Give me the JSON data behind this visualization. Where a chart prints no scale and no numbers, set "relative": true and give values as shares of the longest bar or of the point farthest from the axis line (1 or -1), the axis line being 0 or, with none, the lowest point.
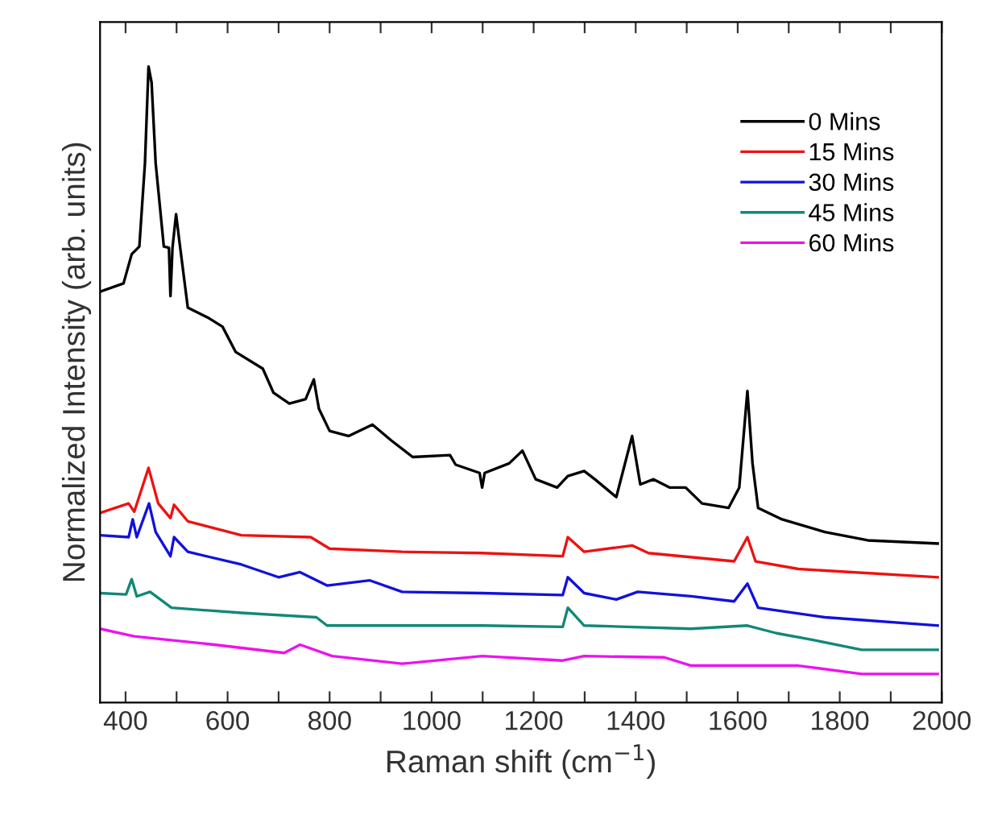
{
  "chart_data": {
    "type": "line",
    "xlabel": "Raman shift (cm$^{−1}$)",
    "ylabel": "Normalized Intensity (arb. units)",
    "relative": true,
    "xlim": [
      350,
      2000
    ],
    "xticks": [
      400,
      {
        "value": 500,
        "label": null
      },
      600,
      {
        "value": 700,
        "label": null
      },
      800,
      {
        "value": 900,
        "label": null
      },
      1000,
      {
        "value": 1100,
        "label": null
      },
      1200,
      {
        "value": 1300,
        "label": null
      },
      1400,
      {
        "value": 1500,
        "label": null
      },
      1600,
      {
        "value": 1700,
        "label": null
      },
      1800,
      {
        "value": 1900,
        "label": null
      },
      2000
    ],
    "legend": "top right",
    "grid": false,
    "marker": "none",
    "line_style": "solid",
    "series": [
      {
        "name": "0 Mins",
        "color": "#000000",
        "x": [
          350,
          396,
          412,
          427,
          438,
          445,
          451,
          459,
          475,
          485,
          488,
          492,
          499,
          506,
          522,
          564,
          590,
          616,
          669,
          690,
          721,
          753,
          769,
          779,
          800,
          837,
          884,
          921,
          963,
          1036,
          1047,
          1094,
          1099,
          1104,
          1152,
          1178,
          1204,
          1246,
          1267,
          1299,
          1320,
          1362,
          1393,
          1409,
          1435,
          1467,
          1498,
          1530,
          1582,
          1603,
          1619,
          1629,
          1640,
          1687,
          1771,
          1855,
          1992
        ],
        "values": [
          0.646,
          0.659,
          0.705,
          0.717,
          0.848,
          1.0,
          0.975,
          0.848,
          0.717,
          0.715,
          0.639,
          0.715,
          0.768,
          0.722,
          0.621,
          0.604,
          0.591,
          0.551,
          0.525,
          0.487,
          0.47,
          0.477,
          0.508,
          0.462,
          0.427,
          0.419,
          0.437,
          0.412,
          0.386,
          0.389,
          0.374,
          0.361,
          0.338,
          0.361,
          0.376,
          0.396,
          0.351,
          0.338,
          0.356,
          0.364,
          0.351,
          0.323,
          0.419,
          0.343,
          0.351,
          0.338,
          0.338,
          0.313,
          0.306,
          0.338,
          0.49,
          0.376,
          0.306,
          0.288,
          0.268,
          0.255,
          0.25
        ]
      },
      {
        "name": "15 Mins",
        "color": "#ee1111",
        "x": [
          350,
          406,
          417,
          445,
          464,
          488,
          495,
          522,
          627,
          763,
          800,
          942,
          1099,
          1257,
          1267,
          1299,
          1393,
          1425,
          1593,
          1619,
          1635,
          1719,
          1992
        ],
        "values": [
          0.298,
          0.313,
          0.3,
          0.369,
          0.313,
          0.29,
          0.311,
          0.285,
          0.263,
          0.26,
          0.242,
          0.237,
          0.235,
          0.23,
          0.26,
          0.237,
          0.247,
          0.235,
          0.222,
          0.26,
          0.222,
          0.21,
          0.197
        ]
      },
      {
        "name": "30 Mins",
        "color": "#1111dd",
        "x": [
          350,
          406,
          414,
          422,
          446,
          459,
          488,
          495,
          522,
          627,
          700,
          742,
          795,
          879,
          942,
          1099,
          1257,
          1267,
          1299,
          1362,
          1404,
          1509,
          1593,
          1619,
          1640,
          1771,
          1992
        ],
        "values": [
          0.263,
          0.26,
          0.288,
          0.26,
          0.313,
          0.268,
          0.23,
          0.26,
          0.237,
          0.217,
          0.197,
          0.205,
          0.184,
          0.192,
          0.174,
          0.172,
          0.169,
          0.197,
          0.172,
          0.162,
          0.174,
          0.167,
          0.159,
          0.187,
          0.149,
          0.134,
          0.121
        ]
      },
      {
        "name": "45 Mins",
        "color": "#118877",
        "x": [
          350,
          401,
          412,
          422,
          448,
          490,
          627,
          774,
          795,
          1099,
          1257,
          1267,
          1299,
          1509,
          1619,
          1676,
          1750,
          1843,
          1992
        ],
        "values": [
          0.172,
          0.17,
          0.194,
          0.167,
          0.174,
          0.149,
          0.141,
          0.134,
          0.121,
          0.121,
          0.119,
          0.149,
          0.121,
          0.116,
          0.121,
          0.109,
          0.098,
          0.083,
          0.083
        ]
      },
      {
        "name": "60 Mins",
        "color": "#ee11ee",
        "x": [
          350,
          417,
          574,
          711,
          742,
          805,
          942,
          1099,
          1257,
          1299,
          1456,
          1509,
          1719,
          1843,
          1992
        ],
        "values": [
          0.116,
          0.104,
          0.091,
          0.078,
          0.091,
          0.073,
          0.061,
          0.073,
          0.066,
          0.073,
          0.071,
          0.058,
          0.058,
          0.045,
          0.045
        ]
      }
    ]
  }
}
